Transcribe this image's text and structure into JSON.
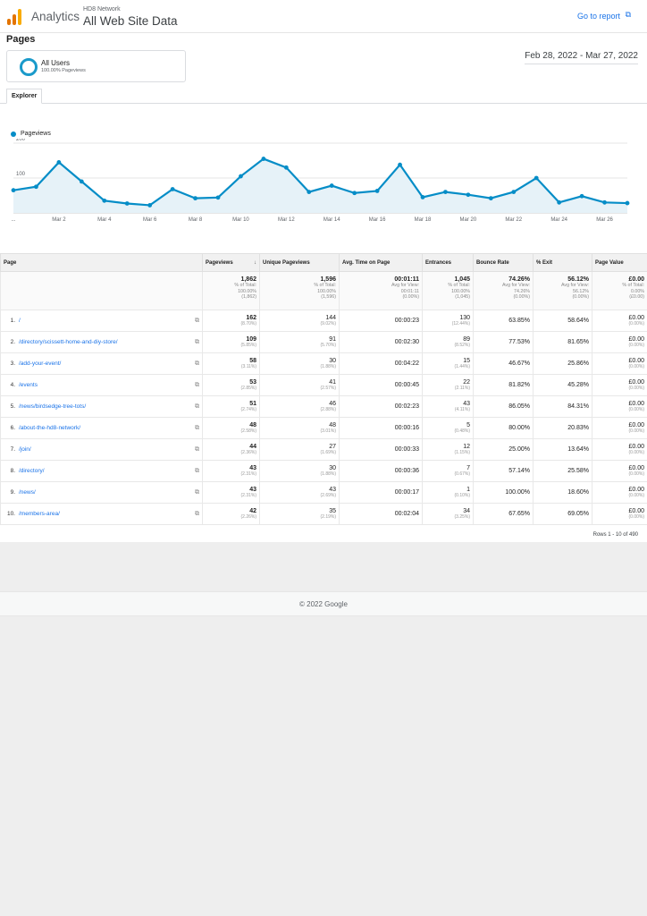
{
  "header": {
    "app_name": "Analytics",
    "account": "HD8 Network",
    "view": "All Web Site Data",
    "go_to_report": "Go to report",
    "logo_colors": [
      "#f9ab00",
      "#e37400",
      "#e37400"
    ]
  },
  "page_title": "Pages",
  "segment": {
    "name": "All Users",
    "sub": "100.00% Pageviews"
  },
  "date_range": "Feb 28, 2022 - Mar 27, 2022",
  "tab": "Explorer",
  "chart_data": {
    "type": "area",
    "series": [
      {
        "name": "Pageviews",
        "color": "#058dc7",
        "values": [
          65,
          75,
          145,
          90,
          35,
          27,
          22,
          68,
          42,
          44,
          105,
          155,
          130,
          60,
          78,
          57,
          63,
          138,
          45,
          60,
          52,
          42,
          60,
          100,
          30,
          48,
          30,
          28
        ]
      }
    ],
    "x_tick_labels": [
      "...",
      "Mar 2",
      "Mar 4",
      "Mar 6",
      "Mar 8",
      "Mar 10",
      "Mar 12",
      "Mar 14",
      "Mar 16",
      "Mar 18",
      "Mar 20",
      "Mar 22",
      "Mar 24",
      "Mar 26"
    ],
    "y_ticks": [
      100,
      200
    ],
    "ylim": [
      0,
      200
    ],
    "grid": true,
    "legend": "top-left"
  },
  "table": {
    "columns": [
      "Page",
      "Pageviews",
      "Unique Pageviews",
      "Avg. Time on Page",
      "Entrances",
      "Bounce Rate",
      "% Exit",
      "Page Value"
    ],
    "sort_icon": "arrow-down-icon",
    "totals": [
      {
        "value": "1,862",
        "l1": "% of Total:",
        "l2": "100.00%",
        "l3": "(1,862)"
      },
      {
        "value": "1,596",
        "l1": "% of Total:",
        "l2": "100.00%",
        "l3": "(1,596)"
      },
      {
        "value": "00:01:11",
        "l1": "Avg for View:",
        "l2": "00:01:11",
        "l3": "(0.00%)"
      },
      {
        "value": "1,045",
        "l1": "% of Total:",
        "l2": "100.00%",
        "l3": "(1,045)"
      },
      {
        "value": "74.26%",
        "l1": "Avg for View:",
        "l2": "74.26%",
        "l3": "(0.00%)"
      },
      {
        "value": "56.12%",
        "l1": "Avg for View:",
        "l2": "56.12%",
        "l3": "(0.00%)"
      },
      {
        "value": "£0.00",
        "l1": "% of Total:",
        "l2": "0.00%",
        "l3": "(£0.00)"
      }
    ],
    "rows": [
      {
        "n": "1.",
        "page": "/",
        "pv": "162",
        "pvp": "(8.70%)",
        "upv": "144",
        "upvp": "(9.02%)",
        "time": "00:00:23",
        "ent": "130",
        "entp": "(12.44%)",
        "bounce": "63.85%",
        "exit": "58.64%",
        "val": "£0.00",
        "valp": "(0.00%)"
      },
      {
        "n": "2.",
        "page": "/directory/scissett-home-and-diy-store/",
        "pv": "109",
        "pvp": "(5.85%)",
        "upv": "91",
        "upvp": "(5.70%)",
        "time": "00:02:30",
        "ent": "89",
        "entp": "(8.52%)",
        "bounce": "77.53%",
        "exit": "81.65%",
        "val": "£0.00",
        "valp": "(0.00%)"
      },
      {
        "n": "3.",
        "page": "/add-your-event/",
        "pv": "58",
        "pvp": "(3.11%)",
        "upv": "30",
        "upvp": "(1.88%)",
        "time": "00:04:22",
        "ent": "15",
        "entp": "(1.44%)",
        "bounce": "46.67%",
        "exit": "25.86%",
        "val": "£0.00",
        "valp": "(0.00%)"
      },
      {
        "n": "4.",
        "page": "/events",
        "pv": "53",
        "pvp": "(2.85%)",
        "upv": "41",
        "upvp": "(2.57%)",
        "time": "00:00:45",
        "ent": "22",
        "entp": "(2.11%)",
        "bounce": "81.82%",
        "exit": "45.28%",
        "val": "£0.00",
        "valp": "(0.00%)"
      },
      {
        "n": "5.",
        "page": "/news/birdsedge-tree-tots/",
        "pv": "51",
        "pvp": "(2.74%)",
        "upv": "46",
        "upvp": "(2.88%)",
        "time": "00:02:23",
        "ent": "43",
        "entp": "(4.11%)",
        "bounce": "86.05%",
        "exit": "84.31%",
        "val": "£0.00",
        "valp": "(0.00%)"
      },
      {
        "n": "6.",
        "page": "/about-the-hd8-network/",
        "pv": "48",
        "pvp": "(2.58%)",
        "upv": "48",
        "upvp": "(3.01%)",
        "time": "00:00:16",
        "ent": "5",
        "entp": "(0.48%)",
        "bounce": "80.00%",
        "exit": "20.83%",
        "val": "£0.00",
        "valp": "(0.00%)"
      },
      {
        "n": "7.",
        "page": "/join/",
        "pv": "44",
        "pvp": "(2.36%)",
        "upv": "27",
        "upvp": "(1.69%)",
        "time": "00:00:33",
        "ent": "12",
        "entp": "(1.15%)",
        "bounce": "25.00%",
        "exit": "13.64%",
        "val": "£0.00",
        "valp": "(0.00%)"
      },
      {
        "n": "8.",
        "page": "/directory/",
        "pv": "43",
        "pvp": "(2.31%)",
        "upv": "30",
        "upvp": "(1.88%)",
        "time": "00:00:36",
        "ent": "7",
        "entp": "(0.67%)",
        "bounce": "57.14%",
        "exit": "25.58%",
        "val": "£0.00",
        "valp": "(0.00%)"
      },
      {
        "n": "9.",
        "page": "/news/",
        "pv": "43",
        "pvp": "(2.31%)",
        "upv": "43",
        "upvp": "(2.69%)",
        "time": "00:00:17",
        "ent": "1",
        "entp": "(0.10%)",
        "bounce": "100.00%",
        "exit": "18.60%",
        "val": "£0.00",
        "valp": "(0.00%)"
      },
      {
        "n": "10.",
        "page": "/members-area/",
        "pv": "42",
        "pvp": "(2.26%)",
        "upv": "35",
        "upvp": "(2.19%)",
        "time": "00:02:04",
        "ent": "34",
        "entp": "(3.25%)",
        "bounce": "67.65%",
        "exit": "69.05%",
        "val": "£0.00",
        "valp": "(0.00%)"
      }
    ]
  },
  "rows_info": "Rows 1 - 10 of 490",
  "footer": "© 2022 Google"
}
